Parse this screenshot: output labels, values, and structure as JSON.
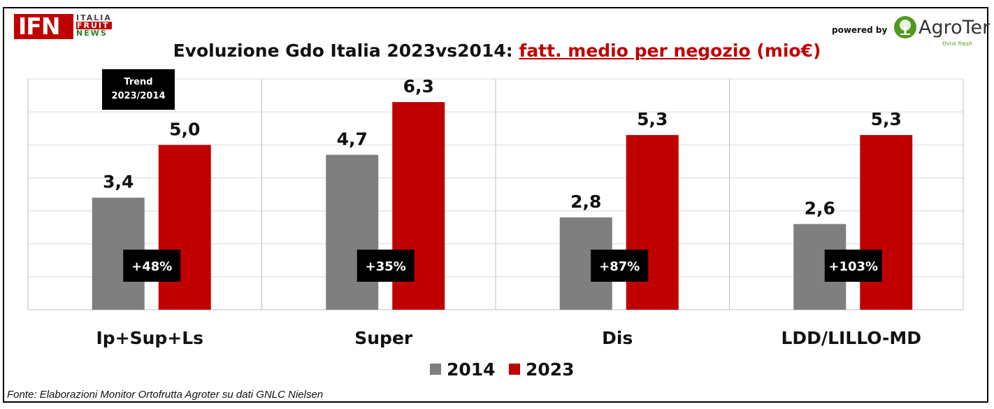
{
  "header": {
    "logo_main": "IFN",
    "logo_line1": "ITALIA",
    "logo_line2": "FRUIT",
    "logo_line3": "NEWS",
    "powered_by": "powered by",
    "sponsor_name": "AgroTer",
    "sponsor_tagline": "think fresh"
  },
  "title": {
    "prefix": "Evoluzione Gdo Italia 2023vs2014: ",
    "highlight": "fatt. medio per negozio",
    "unit": " (mio€)"
  },
  "trend_box": {
    "line1": "Trend",
    "line2": "2023/2014"
  },
  "footer": "Fonte: Elaborazioni Monitor Ortofrutta Agroter su dati GNLC Nielsen",
  "colors": {
    "series_2014": "#7f7f7f",
    "series_2023": "#c00000",
    "accent": "#c00000"
  },
  "chart_data": {
    "type": "bar",
    "categories": [
      "Ip+Sup+Ls",
      "Super",
      "Dis",
      "LDD/LILLO-MD"
    ],
    "series": [
      {
        "name": "2014",
        "values": [
          3.4,
          4.7,
          2.8,
          2.6
        ],
        "labels": [
          "3,4",
          "4,7",
          "2,8",
          "2,6"
        ]
      },
      {
        "name": "2023",
        "values": [
          5.0,
          6.3,
          5.3,
          5.3
        ],
        "labels": [
          "5,0",
          "6,3",
          "5,3",
          "5,3"
        ]
      }
    ],
    "trend_labels": [
      "+48%",
      "+35%",
      "+87%",
      "+103%"
    ],
    "ylim": [
      0,
      7
    ],
    "grid": true,
    "legend": "bottom-center"
  }
}
